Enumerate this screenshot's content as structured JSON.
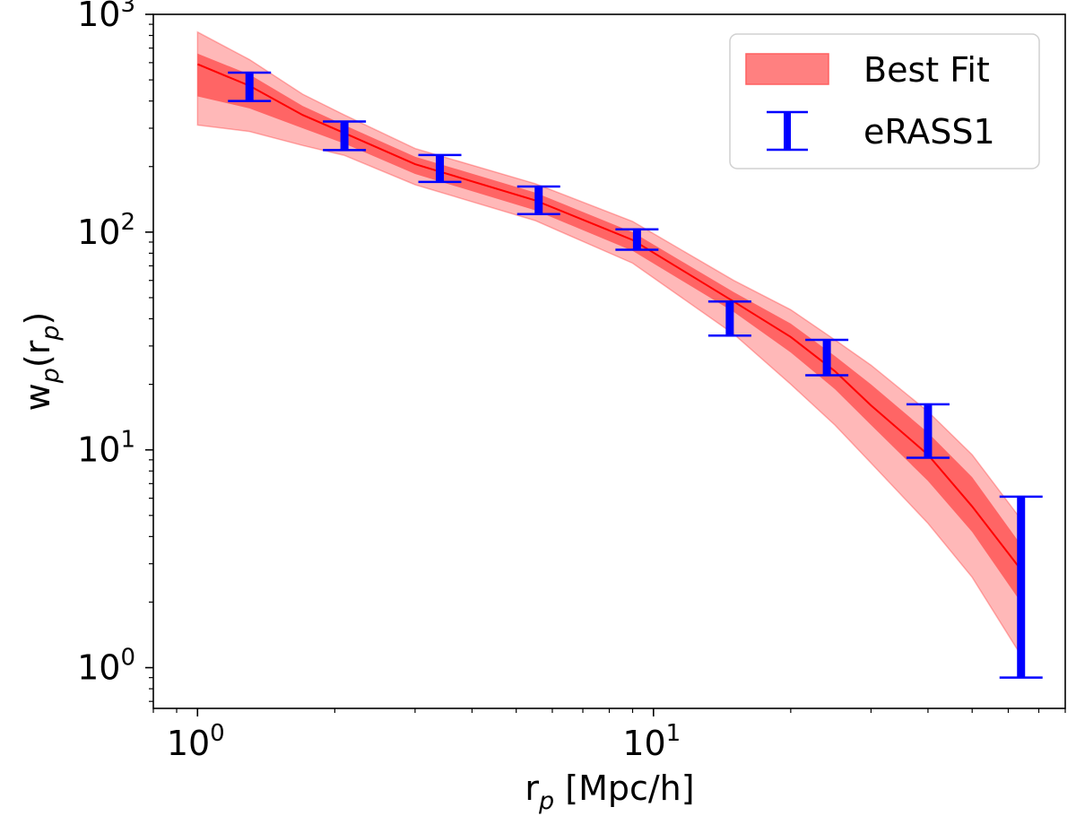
{
  "chart_data": {
    "type": "line",
    "xscale": "log",
    "yscale": "log",
    "xlim": [
      0.8,
      80
    ],
    "ylim": [
      0.65,
      1000
    ],
    "xticks": [
      {
        "value": 1,
        "base": "10",
        "exp": "0"
      },
      {
        "value": 10,
        "base": "10",
        "exp": "1"
      }
    ],
    "yticks": [
      {
        "value": 1,
        "base": "10",
        "exp": "0"
      },
      {
        "value": 10,
        "base": "10",
        "exp": "1"
      },
      {
        "value": 100,
        "base": "10",
        "exp": "2"
      },
      {
        "value": 1000,
        "base": "10",
        "exp": "3"
      }
    ],
    "xlabel": {
      "main": "r",
      "sub": "p",
      "rest": " [Mpc/h]"
    },
    "ylabel": {
      "main": "w",
      "sub": "p",
      "mid": "(r",
      "sub2": "p",
      "end": ")"
    },
    "series": [
      {
        "name": "Best Fit",
        "kind": "band",
        "color": "#ff0000",
        "x": [
          1.0,
          1.3,
          1.7,
          2.1,
          3.0,
          5.5,
          9.0,
          15.0,
          20.0,
          25.0,
          30.0,
          40.0,
          50.0,
          65.0
        ],
        "median": [
          590,
          470,
          345,
          285,
          205,
          140,
          92,
          48,
          33,
          23,
          16,
          9.5,
          5.5,
          2.7
        ],
        "inner_low": [
          420,
          370,
          300,
          255,
          185,
          126,
          82,
          43,
          28,
          19,
          13,
          7.2,
          4.2,
          1.9
        ],
        "inner_high": [
          660,
          530,
          380,
          310,
          222,
          152,
          100,
          53,
          38,
          27,
          20,
          12,
          7.5,
          3.5
        ],
        "outer_low": [
          310,
          290,
          250,
          225,
          165,
          113,
          72,
          34,
          20,
          13,
          8.7,
          4.6,
          2.6,
          1.08
        ],
        "outer_high": [
          830,
          620,
          430,
          345,
          242,
          167,
          112,
          60,
          44,
          32,
          24.5,
          15,
          9.5,
          4.6
        ]
      },
      {
        "name": "eRASS1",
        "kind": "errorbar",
        "color": "#0000ff",
        "x": [
          1.3,
          2.1,
          3.4,
          5.6,
          9.2,
          14.7,
          24.0,
          40.0,
          64.0
        ],
        "low": [
          400,
          238,
          170,
          121,
          83,
          33.5,
          22,
          9.2,
          0.9
        ],
        "high": [
          540,
          322,
          226,
          162,
          103,
          48,
          32,
          16.2,
          6.1
        ]
      }
    ],
    "legend": {
      "position": "top-right",
      "entries": [
        "Best Fit",
        "eRASS1"
      ]
    }
  }
}
